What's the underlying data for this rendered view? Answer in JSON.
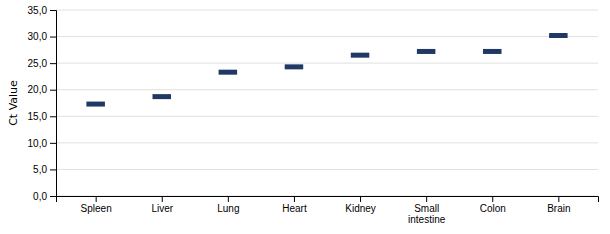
{
  "chart_data": {
    "type": "scatter",
    "marker": "hline",
    "categories": [
      "Spleen",
      "Liver",
      "Lung",
      "Heart",
      "Kidney",
      "Small\nintestine",
      "Colon",
      "Brain"
    ],
    "values": [
      17.3,
      18.7,
      23.3,
      24.3,
      26.5,
      27.2,
      27.2,
      30.2
    ],
    "color": "#1F3864",
    "ylabel": "Ct Value",
    "ylim": [
      0,
      35
    ],
    "yticks": [
      {
        "value": 0.0,
        "label": "0,0"
      },
      {
        "value": 5.0,
        "label": "5,0"
      },
      {
        "value": 10.0,
        "label": "10,0"
      },
      {
        "value": 15.0,
        "label": "15,0"
      },
      {
        "value": 20.0,
        "label": "20,0"
      },
      {
        "value": 25.0,
        "label": "25,0"
      },
      {
        "value": 30.0,
        "label": "30,0"
      },
      {
        "value": 35.0,
        "label": "35,0"
      }
    ],
    "grid": true
  }
}
